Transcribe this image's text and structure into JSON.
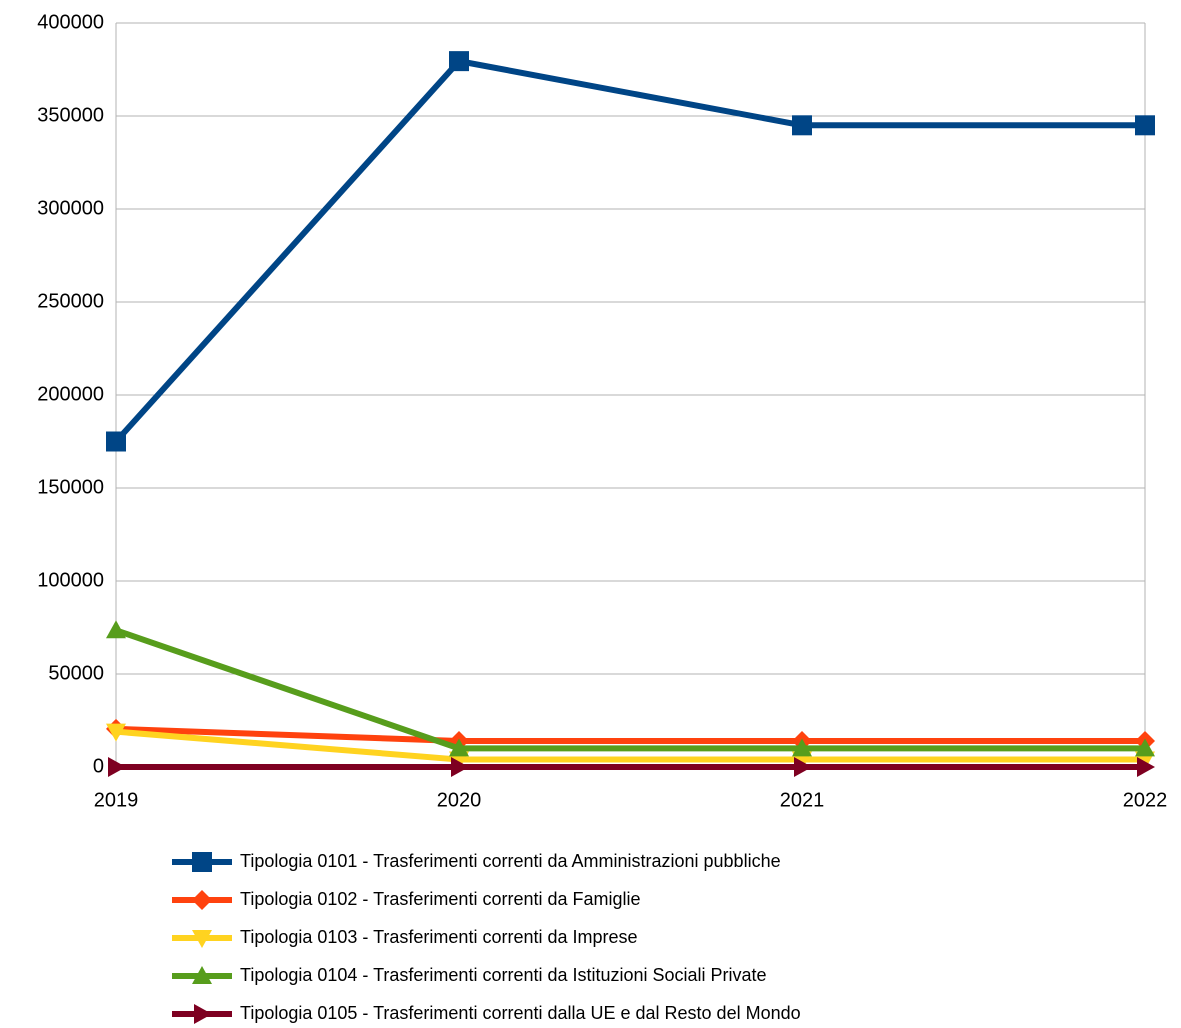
{
  "chart_data": {
    "type": "line",
    "categories": [
      "2019",
      "2020",
      "2021",
      "2022"
    ],
    "ylim": [
      0,
      400000
    ],
    "yticks": [
      0,
      50000,
      100000,
      150000,
      200000,
      250000,
      300000,
      350000,
      400000
    ],
    "grid": true,
    "legend": "bottom",
    "series": [
      {
        "name": "Tipologia 0101 - Trasferimenti correnti da Amministrazioni pubbliche",
        "color": "#004586",
        "marker": "square",
        "values": [
          175000,
          379500,
          345000,
          345000
        ]
      },
      {
        "name": "Tipologia 0102 - Trasferimenti correnti da Famiglie",
        "color": "#ff420e",
        "marker": "diamond",
        "values": [
          20500,
          14000,
          14000,
          14000
        ]
      },
      {
        "name": "Tipologia 0103 - Trasferimenti correnti da Imprese",
        "color": "#ffd320",
        "marker": "triangle-down",
        "values": [
          19000,
          4000,
          4000,
          4000
        ]
      },
      {
        "name": "Tipologia 0104 - Trasferimenti correnti da Istituzioni Sociali Private",
        "color": "#579d1c",
        "marker": "triangle-up",
        "values": [
          73500,
          10000,
          10000,
          10000
        ]
      },
      {
        "name": "Tipologia 0105 - Trasferimenti correnti dalla UE e dal Resto del Mondo",
        "color": "#7e0021",
        "marker": "triangle-right",
        "values": [
          0,
          0,
          0,
          0
        ]
      }
    ]
  }
}
